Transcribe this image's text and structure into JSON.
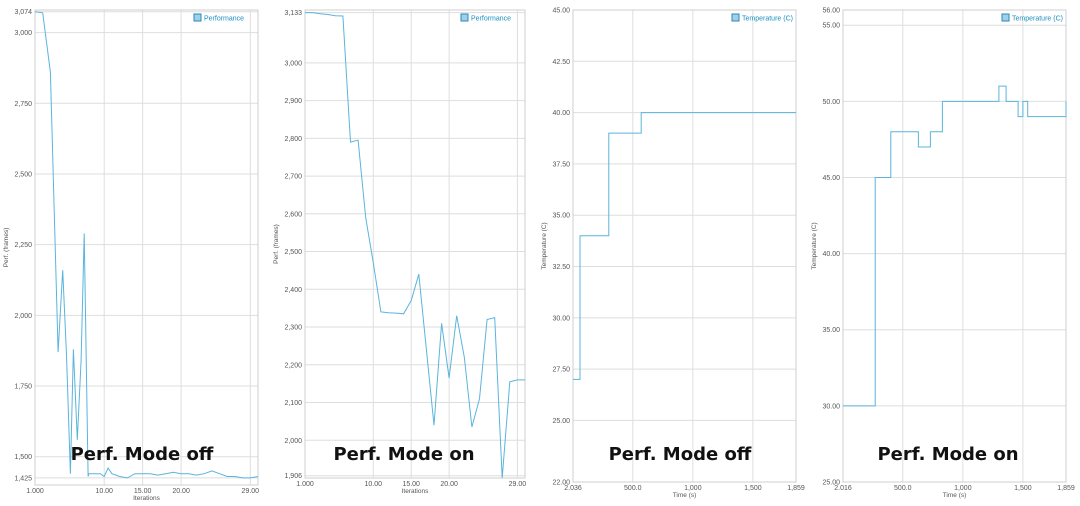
{
  "chart_data": [
    {
      "type": "line",
      "caption": "Perf. Mode off",
      "legend": "Performance",
      "ylabel": "Perf. (frames)",
      "xlabel": "Iterations",
      "xlim": [
        1,
        30
      ],
      "ylim": [
        1400,
        3080
      ],
      "yticks": [
        {
          "v": 3074,
          "t": "3,074"
        },
        {
          "v": 3000,
          "t": "3,000"
        },
        {
          "v": 2750,
          "t": "2,750"
        },
        {
          "v": 2500,
          "t": "2,500"
        },
        {
          "v": 2250,
          "t": "2,250"
        },
        {
          "v": 2000,
          "t": "2,000"
        },
        {
          "v": 1750,
          "t": "1,750"
        },
        {
          "v": 1500,
          "t": "1,500"
        },
        {
          "v": 1425,
          "t": "1,425"
        }
      ],
      "xticks": [
        {
          "v": 1,
          "t": "1.000"
        },
        {
          "v": 10,
          "t": "10.00"
        },
        {
          "v": 15,
          "t": "15.00"
        },
        {
          "v": 20,
          "t": "20.00"
        },
        {
          "v": 29,
          "t": "29.00"
        }
      ],
      "step": false,
      "series": [
        {
          "x": [
            1,
            2,
            3,
            4,
            4.6,
            5.1,
            5.6,
            6,
            6.5,
            7,
            7.4,
            7.9,
            8,
            8.5,
            9,
            9.5,
            10,
            10.5,
            11,
            12,
            13,
            14,
            15,
            16,
            17,
            18,
            19,
            20,
            21,
            22,
            23,
            24,
            25,
            26,
            27,
            28,
            29,
            30
          ],
          "y": [
            3074,
            3070,
            2860,
            1870,
            2160,
            1860,
            1440,
            1880,
            1560,
            1840,
            2290,
            1430,
            1440,
            1440,
            1440,
            1440,
            1430,
            1460,
            1440,
            1430,
            1425,
            1440,
            1440,
            1440,
            1435,
            1440,
            1445,
            1440,
            1440,
            1435,
            1440,
            1450,
            1440,
            1430,
            1430,
            1425,
            1425,
            1430
          ]
        }
      ]
    },
    {
      "type": "line",
      "caption": "Perf. Mode on",
      "legend": "Performance",
      "ylabel": "Perf. (frames)",
      "xlabel": "Iterations",
      "xlim": [
        1,
        30
      ],
      "ylim": [
        1900,
        3140
      ],
      "yticks": [
        {
          "v": 3133,
          "t": "3,133"
        },
        {
          "v": 3000,
          "t": "3,000"
        },
        {
          "v": 2900,
          "t": "2,900"
        },
        {
          "v": 2800,
          "t": "2,800"
        },
        {
          "v": 2700,
          "t": "2,700"
        },
        {
          "v": 2600,
          "t": "2,600"
        },
        {
          "v": 2500,
          "t": "2,500"
        },
        {
          "v": 2400,
          "t": "2,400"
        },
        {
          "v": 2300,
          "t": "2,300"
        },
        {
          "v": 2200,
          "t": "2,200"
        },
        {
          "v": 2100,
          "t": "2,100"
        },
        {
          "v": 2000,
          "t": "2,000"
        },
        {
          "v": 1906,
          "t": "1,906"
        }
      ],
      "xticks": [
        {
          "v": 1,
          "t": "1.000"
        },
        {
          "v": 10,
          "t": "10.00"
        },
        {
          "v": 15,
          "t": "15.00"
        },
        {
          "v": 20,
          "t": "20.00"
        },
        {
          "v": 29,
          "t": "29.00"
        }
      ],
      "step": false,
      "series": [
        {
          "x": [
            1,
            2,
            3,
            4,
            5,
            6,
            7,
            8,
            9,
            10,
            11,
            12,
            13,
            14,
            15,
            16,
            17,
            18,
            19,
            20,
            21,
            22,
            23,
            24,
            25,
            26,
            27,
            28,
            29,
            30
          ],
          "y": [
            3133,
            3133,
            3130,
            3128,
            3125,
            3124,
            2790,
            2795,
            2590,
            2470,
            2340,
            2338,
            2337,
            2335,
            2370,
            2440,
            2240,
            2040,
            2310,
            2165,
            2330,
            2220,
            2035,
            2110,
            2320,
            2325,
            1900,
            2155,
            2160,
            2160
          ]
        }
      ]
    },
    {
      "type": "line",
      "caption": "Perf. Mode off",
      "legend": "Temperature (C)",
      "ylabel": "Temperature (C)",
      "xlabel": "Time (s)",
      "xlim": [
        2.036,
        1859
      ],
      "ylim": [
        22,
        45
      ],
      "yticks": [
        {
          "v": 45,
          "t": "45.00"
        },
        {
          "v": 42.5,
          "t": "42.50"
        },
        {
          "v": 40,
          "t": "40.00"
        },
        {
          "v": 37.5,
          "t": "37.50"
        },
        {
          "v": 35,
          "t": "35.00"
        },
        {
          "v": 32.5,
          "t": "32.50"
        },
        {
          "v": 30,
          "t": "30.00"
        },
        {
          "v": 27.5,
          "t": "27.50"
        },
        {
          "v": 25,
          "t": "25.00"
        },
        {
          "v": 22,
          "t": "22.00"
        }
      ],
      "xticks": [
        {
          "v": 2.036,
          "t": "2.036"
        },
        {
          "v": 500,
          "t": "500.0"
        },
        {
          "v": 1000,
          "t": "1,000"
        },
        {
          "v": 1500,
          "t": "1,500"
        },
        {
          "v": 1859,
          "t": "1,859"
        }
      ],
      "step": true,
      "series": [
        {
          "x": [
            2.036,
            60,
            60,
            300,
            300,
            570,
            570,
            630,
            630,
            1859
          ],
          "y": [
            27,
            27,
            34,
            34,
            39,
            39,
            40,
            40,
            40,
            40
          ]
        }
      ]
    },
    {
      "type": "line",
      "caption": "Perf. Mode on",
      "legend": "Temperature (C)",
      "ylabel": "Temperature (C)",
      "xlabel": "Time (s)",
      "xlim": [
        2.016,
        1859
      ],
      "ylim": [
        25,
        56
      ],
      "yticks": [
        {
          "v": 56,
          "t": "56.00"
        },
        {
          "v": 55,
          "t": "55.00"
        },
        {
          "v": 50,
          "t": "50.00"
        },
        {
          "v": 45,
          "t": "45.00"
        },
        {
          "v": 40,
          "t": "40.00"
        },
        {
          "v": 35,
          "t": "35.00"
        },
        {
          "v": 30,
          "t": "30.00"
        },
        {
          "v": 25,
          "t": "25.00"
        }
      ],
      "xticks": [
        {
          "v": 2.016,
          "t": "2.016"
        },
        {
          "v": 500,
          "t": "500.0"
        },
        {
          "v": 1000,
          "t": "1,000"
        },
        {
          "v": 1500,
          "t": "1,500"
        },
        {
          "v": 1859,
          "t": "1,859"
        }
      ],
      "step": true,
      "series": [
        {
          "x": [
            2.016,
            270,
            270,
            400,
            400,
            630,
            630,
            730,
            730,
            830,
            830,
            1300,
            1300,
            1360,
            1360,
            1460,
            1460,
            1500,
            1500,
            1540,
            1540,
            1859,
            1859
          ],
          "y": [
            30,
            30,
            45,
            45,
            48,
            48,
            47,
            47,
            48,
            48,
            50,
            50,
            51,
            51,
            50,
            50,
            49,
            49,
            50,
            50,
            49,
            49,
            50
          ]
        }
      ]
    }
  ]
}
